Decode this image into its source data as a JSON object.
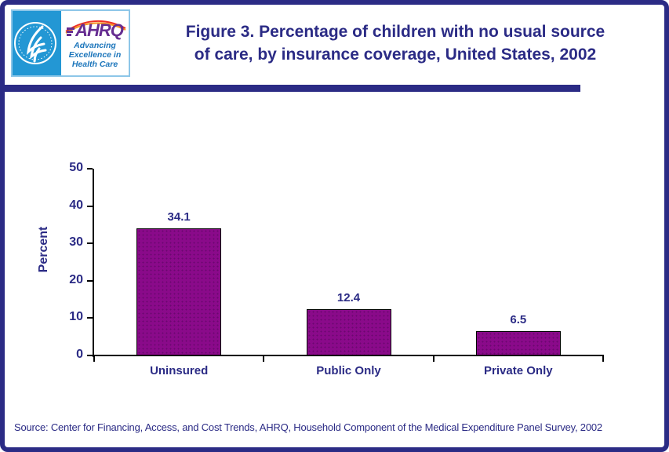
{
  "theme": {
    "navy": "#2B2B85",
    "divider_navy": "#2D2D86",
    "hhs_cyan": "#2397D4",
    "ahrq_purple": "#662D91",
    "logo_blue": "#1B75BB",
    "arc_orange": "#F7941D",
    "arc_red": "#EE3124",
    "bar_purple": "#8A0A8A"
  },
  "header": {
    "logo": {
      "ahrq_acronym": "AHRQ",
      "tagline_line1": "Advancing",
      "tagline_line2": "Excellence in",
      "tagline_line3": "Health Care"
    },
    "title_line1": "Figure 3. Percentage of children with no usual source",
    "title_line2": "of care, by insurance coverage, United States, 2002"
  },
  "chart_data": {
    "type": "bar",
    "title": "Figure 3. Percentage of children with no usual source of care, by insurance coverage, United States, 2002",
    "categories": [
      "Uninsured",
      "Public Only",
      "Private Only"
    ],
    "values": [
      34.1,
      12.4,
      6.5
    ],
    "value_labels": [
      "34.1",
      "12.4",
      "6.5"
    ],
    "xlabel": "",
    "ylabel": "Percent",
    "ylim": [
      0,
      50
    ],
    "yticks": [
      0,
      10,
      20,
      30,
      40,
      50
    ],
    "grid": false,
    "legend": "none",
    "bar_color": "#8A0A8A",
    "bar_border_color": "#000000"
  },
  "footer": {
    "source": "Source: Center for Financing, Access, and Cost Trends, AHRQ, Household Component of the Medical Expenditure Panel Survey, 2002"
  }
}
